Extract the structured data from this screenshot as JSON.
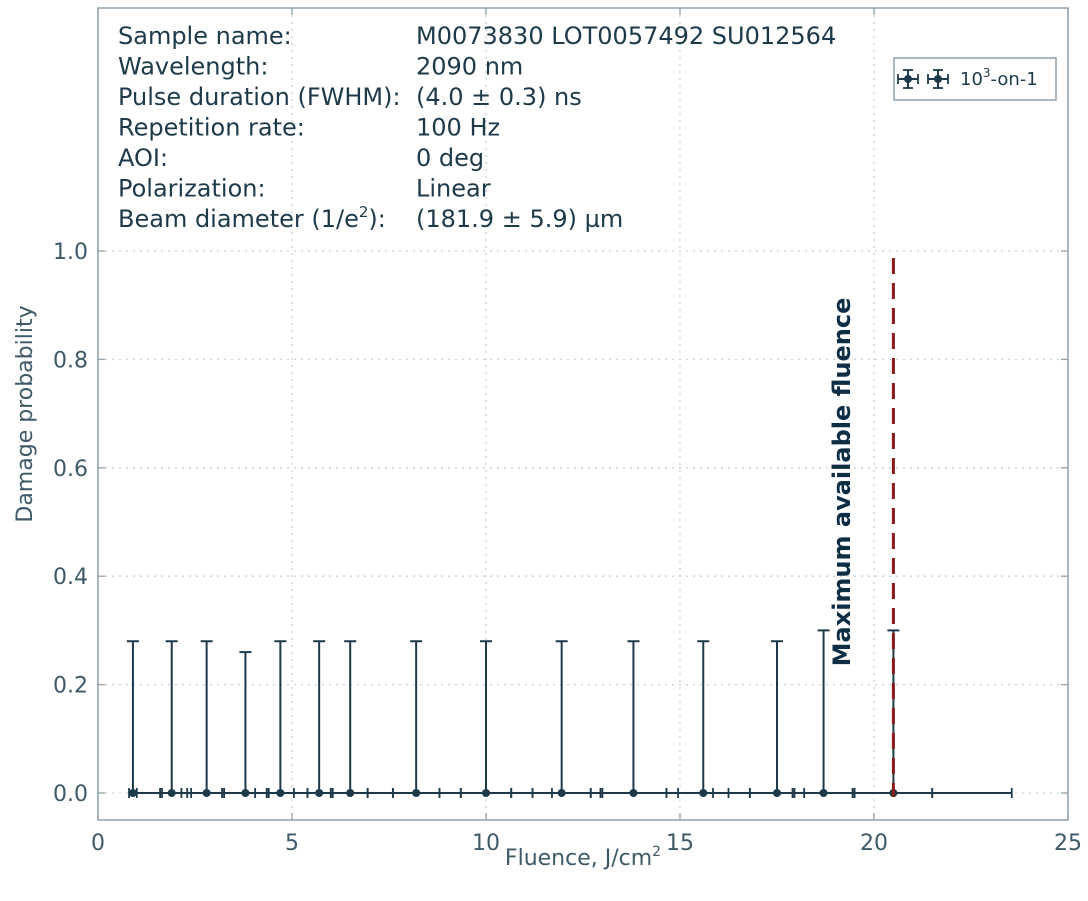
{
  "chart_data": {
    "type": "scatter",
    "xlabel": "Fluence, J/cm",
    "xlabel_sup": "2",
    "ylabel": "Damage probability",
    "xlim": [
      0,
      25
    ],
    "ylim": [
      -0.05,
      1.45
    ],
    "x_ticks": [
      0,
      5,
      10,
      15,
      20,
      25
    ],
    "x_tick_labels": [
      "0",
      "5",
      "10",
      "15",
      "20",
      "25"
    ],
    "y_ticks": [
      0.0,
      0.2,
      0.4,
      0.6,
      0.8,
      1.0
    ],
    "y_tick_labels": [
      "0.0",
      "0.2",
      "0.4",
      "0.6",
      "0.8",
      "1.0"
    ],
    "grid": true,
    "legend_placement": "top-right",
    "series": [
      {
        "name": "10",
        "name_sup": "3",
        "name_suffix": "-on-1",
        "color": "#1d3a4a",
        "points": [
          {
            "x": 0.9,
            "y": 0.0,
            "xerr": 0.1,
            "yerr_up": 0.28
          },
          {
            "x": 1.9,
            "y": 0.0,
            "xerr": 0.25,
            "yerr_up": 0.28
          },
          {
            "x": 2.8,
            "y": 0.0,
            "xerr": 0.4,
            "yerr_up": 0.28
          },
          {
            "x": 3.8,
            "y": 0.0,
            "xerr": 0.55,
            "yerr_up": 0.26
          },
          {
            "x": 4.7,
            "y": 0.0,
            "xerr": 0.35,
            "yerr_up": 0.28
          },
          {
            "x": 5.7,
            "y": 0.0,
            "xerr": 0.3,
            "yerr_up": 0.28
          },
          {
            "x": 6.5,
            "y": 0.0,
            "xerr": 0.45,
            "yerr_up": 0.28
          },
          {
            "x": 8.2,
            "y": 0.0,
            "xerr": 0.6,
            "yerr_up": 0.28
          },
          {
            "x": 10.0,
            "y": 0.0,
            "xerr": 0.65,
            "yerr_up": 0.28
          },
          {
            "x": 11.95,
            "y": 0.0,
            "xerr": 0.75,
            "yerr_up": 0.28
          },
          {
            "x": 13.8,
            "y": 0.0,
            "xerr": 0.85,
            "yerr_up": 0.28
          },
          {
            "x": 15.6,
            "y": 0.0,
            "xerr": 0.65,
            "yerr_up": 0.28
          },
          {
            "x": 17.5,
            "y": 0.0,
            "xerr": 0.7,
            "yerr_up": 0.28
          },
          {
            "x": 18.7,
            "y": 0.0,
            "xerr": 0.75,
            "yerr_up": 0.3
          },
          {
            "x": 20.5,
            "y": 0.0,
            "xerr": 1.0,
            "yerr_up": 0.3
          }
        ]
      }
    ],
    "extra_error_ticks_x": [
      1.6,
      2.3,
      3.2,
      4.05,
      4.4,
      5.4,
      6.0,
      6.95,
      7.6,
      8.8,
      9.35,
      10.65,
      11.2,
      11.7,
      12.7,
      13.0,
      14.65,
      15.85,
      16.8,
      17.9,
      19.45,
      21.5,
      23.55
    ],
    "vline": {
      "x": 20.5,
      "color": "#8b1a1a",
      "label": "Maximum available fluence"
    },
    "info": [
      {
        "key": "Sample name:",
        "value": "M0073830 LOT0057492 SU012564"
      },
      {
        "key": "Wavelength:",
        "value": "2090 nm"
      },
      {
        "key": "Pulse duration (FWHM):",
        "value": "(4.0 ± 0.3) ns"
      },
      {
        "key": "Repetition rate:",
        "value": "100 Hz"
      },
      {
        "key": "AOI:",
        "value": "0 deg"
      },
      {
        "key": "Polarization:",
        "value": "Linear"
      },
      {
        "key": "Beam diameter (1/e",
        "key_sup": "2",
        "key_suffix": "):",
        "value": "(181.9 ± 5.9) µm"
      }
    ]
  }
}
